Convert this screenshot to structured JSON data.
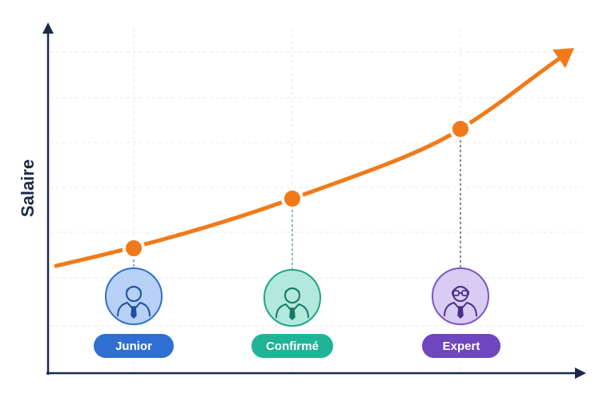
{
  "y_axis_label": "Salaire",
  "levels": [
    {
      "label": "Junior"
    },
    {
      "label": "Confirmé"
    },
    {
      "label": "Expert"
    }
  ]
}
